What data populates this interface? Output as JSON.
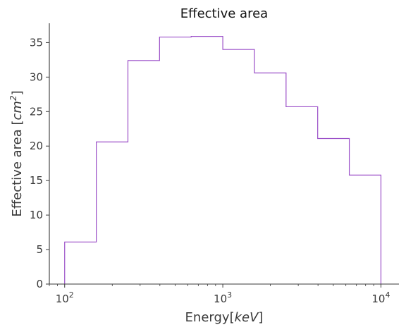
{
  "chart_data": {
    "type": "line",
    "title": "Effective area",
    "xlabel": "Energy[keV]",
    "ylabel": "Effective area [cm^2]",
    "x_scale": "log",
    "xlim": [
      80,
      13000
    ],
    "ylim": [
      0,
      37.8
    ],
    "x_ticks": [
      {
        "value": 100,
        "base": "10",
        "exp": "2"
      },
      {
        "value": 1000,
        "base": "10",
        "exp": "3"
      },
      {
        "value": 10000,
        "base": "10",
        "exp": "4"
      }
    ],
    "y_ticks": [
      0,
      5,
      10,
      15,
      20,
      25,
      30,
      35
    ],
    "grid": false,
    "step_edges": [
      100,
      158.5,
      251.2,
      398.1,
      631,
      1000,
      1585,
      2512,
      3981,
      6310,
      10000
    ],
    "series": [
      {
        "values": [
          6.1,
          20.6,
          32.4,
          35.8,
          35.9,
          34.0,
          30.6,
          25.7,
          21.1,
          15.8
        ],
        "color": "#9b4fc8"
      }
    ]
  }
}
